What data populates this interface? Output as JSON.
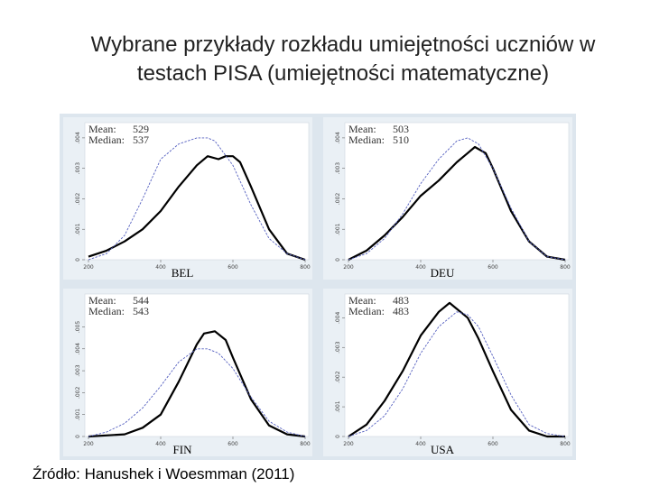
{
  "title_line1": "Wybrane przykłady rozkładu umiejętności uczniów w",
  "title_line2": "testach PISA (umiejętności matematyczne)",
  "source": "Źródło: Hanushek i Woesmman (2011)",
  "colors": {
    "country_line": "#000000",
    "reference_line": "#5560c0",
    "panel_bg": "#eaf0f5",
    "plot_bg": "#ffffff"
  },
  "chart_data": [
    {
      "type": "line",
      "country": "BEL",
      "stats": [
        {
          "label": "Mean:",
          "value": "529"
        },
        {
          "label": "Median:",
          "value": "537"
        }
      ],
      "xlim": [
        200,
        800
      ],
      "ylim": [
        0,
        0.0045
      ],
      "xticks": [
        "200",
        "400",
        "600",
        "800"
      ],
      "yticks": [
        "0",
        ".001",
        ".002",
        ".003",
        ".004"
      ],
      "series": [
        {
          "style": "solid",
          "x": [
            200,
            250,
            300,
            350,
            400,
            450,
            500,
            530,
            560,
            580,
            600,
            620,
            650,
            700,
            750,
            800
          ],
          "y": [
            0.0001,
            0.0003,
            0.0006,
            0.001,
            0.0016,
            0.0024,
            0.0031,
            0.0034,
            0.0033,
            0.0034,
            0.0034,
            0.0032,
            0.0024,
            0.001,
            0.0002,
            0.0
          ]
        },
        {
          "style": "dashed",
          "x": [
            200,
            250,
            300,
            350,
            400,
            450,
            500,
            530,
            550,
            600,
            650,
            700,
            750,
            800
          ],
          "y": [
            0.0,
            0.0002,
            0.0008,
            0.002,
            0.0033,
            0.0038,
            0.004,
            0.004,
            0.0039,
            0.0031,
            0.0018,
            0.0007,
            0.0002,
            0.0
          ]
        }
      ]
    },
    {
      "type": "line",
      "country": "DEU",
      "stats": [
        {
          "label": "Mean:",
          "value": "503"
        },
        {
          "label": "Median:",
          "value": "510"
        }
      ],
      "xlim": [
        200,
        800
      ],
      "ylim": [
        0,
        0.0045
      ],
      "xticks": [
        "200",
        "400",
        "600",
        "800"
      ],
      "yticks": [
        "0",
        ".001",
        ".002",
        ".003",
        ".004"
      ],
      "series": [
        {
          "style": "solid",
          "x": [
            200,
            250,
            300,
            350,
            400,
            450,
            500,
            530,
            550,
            580,
            600,
            650,
            700,
            750,
            800
          ],
          "y": [
            0.0,
            0.0003,
            0.0008,
            0.0014,
            0.0021,
            0.0026,
            0.0032,
            0.0035,
            0.0037,
            0.0035,
            0.003,
            0.0016,
            0.0006,
            0.0001,
            0.0
          ]
        },
        {
          "style": "dashed",
          "x": [
            200,
            250,
            300,
            350,
            400,
            450,
            500,
            530,
            560,
            600,
            650,
            700,
            750,
            800
          ],
          "y": [
            0.0,
            0.0002,
            0.0007,
            0.0015,
            0.0025,
            0.0033,
            0.0039,
            0.004,
            0.0038,
            0.003,
            0.0017,
            0.0006,
            0.0001,
            0.0
          ]
        }
      ]
    },
    {
      "type": "line",
      "country": "FIN",
      "stats": [
        {
          "label": "Mean:",
          "value": "544"
        },
        {
          "label": "Median:",
          "value": "543"
        }
      ],
      "xlim": [
        200,
        800
      ],
      "ylim": [
        0,
        0.0065
      ],
      "xticks": [
        "200",
        "400",
        "600",
        "800"
      ],
      "yticks": [
        "0",
        ".001",
        ".002",
        ".003",
        ".004",
        ".005"
      ],
      "series": [
        {
          "style": "solid",
          "x": [
            200,
            300,
            350,
            400,
            450,
            500,
            520,
            550,
            580,
            600,
            650,
            700,
            750,
            800
          ],
          "y": [
            0.0,
            0.0001,
            0.0004,
            0.001,
            0.0025,
            0.0042,
            0.0047,
            0.0048,
            0.0044,
            0.0036,
            0.0017,
            0.0005,
            0.0001,
            0.0
          ]
        },
        {
          "style": "dashed",
          "x": [
            200,
            250,
            300,
            350,
            400,
            450,
            500,
            530,
            560,
            600,
            650,
            700,
            750,
            800
          ],
          "y": [
            0.0,
            0.0002,
            0.0006,
            0.0013,
            0.0023,
            0.0034,
            0.004,
            0.004,
            0.0038,
            0.0031,
            0.0018,
            0.0007,
            0.0002,
            0.0
          ]
        }
      ]
    },
    {
      "type": "line",
      "country": "USA",
      "stats": [
        {
          "label": "Mean:",
          "value": "483"
        },
        {
          "label": "Median:",
          "value": "483"
        }
      ],
      "xlim": [
        200,
        800
      ],
      "ylim": [
        0,
        0.0048
      ],
      "xticks": [
        "200",
        "400",
        "600",
        "800"
      ],
      "yticks": [
        "0",
        ".001",
        ".002",
        ".003",
        ".004"
      ],
      "series": [
        {
          "style": "solid",
          "x": [
            200,
            250,
            300,
            350,
            400,
            450,
            480,
            500,
            530,
            560,
            600,
            650,
            700,
            750,
            800
          ],
          "y": [
            0.0,
            0.0004,
            0.0012,
            0.0022,
            0.0034,
            0.0042,
            0.0045,
            0.0043,
            0.004,
            0.0033,
            0.0022,
            0.0009,
            0.0002,
            0.0,
            0.0
          ]
        },
        {
          "style": "dashed",
          "x": [
            200,
            250,
            300,
            350,
            400,
            450,
            500,
            530,
            560,
            600,
            650,
            700,
            750,
            800
          ],
          "y": [
            0.0,
            0.0002,
            0.0007,
            0.0016,
            0.0028,
            0.0037,
            0.0042,
            0.0041,
            0.0037,
            0.0027,
            0.0014,
            0.0004,
            0.0001,
            0.0
          ]
        }
      ]
    }
  ]
}
